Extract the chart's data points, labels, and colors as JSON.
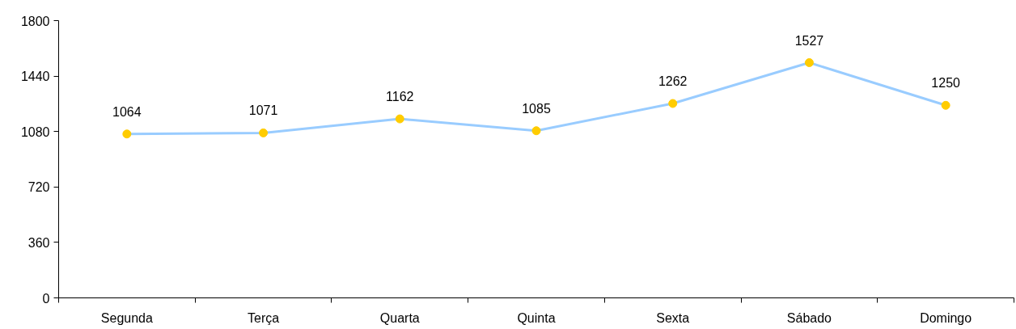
{
  "chart_data": {
    "type": "line",
    "categories": [
      "Segunda",
      "Terça",
      "Quarta",
      "Quinta",
      "Sexta",
      "Sábado",
      "Domingo"
    ],
    "series": [
      {
        "color": "#99ccff",
        "colors": [
          "#ffcc00",
          "#ffcc00",
          "#ffcc00",
          "#ffcc00",
          "#ffcc00",
          "#ffcc00",
          "#ffcc00"
        ],
        "values": [
          1064,
          1071,
          1162,
          1085,
          1262,
          1527,
          1250
        ]
      }
    ],
    "ylim": [
      0,
      1800
    ],
    "yticks": [
      0,
      360,
      720,
      1080,
      1440,
      1800
    ],
    "grid": false,
    "marker": "circle",
    "line_style": "solid",
    "data_labels": true
  }
}
